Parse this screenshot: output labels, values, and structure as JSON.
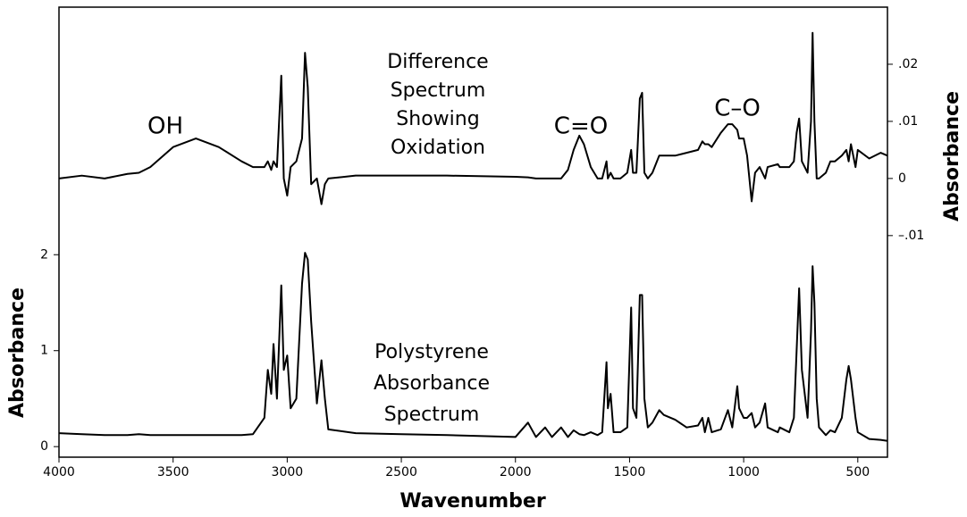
{
  "chart_data": {
    "type": "line",
    "xlabel": "Wavenumber",
    "ylabel": "Absorbance",
    "y2label": "Absorbance",
    "annotations": [
      "OH",
      "C=O",
      "C–O"
    ],
    "text_blocks": [
      [
        "Difference",
        "Spectrum",
        "Showing",
        "Oxidation"
      ],
      [
        "Polystyrene",
        "Absorbance",
        "Spectrum"
      ]
    ],
    "xlim": [
      4000,
      370
    ],
    "xticks": [
      4000,
      3500,
      3000,
      2500,
      2000,
      1500,
      1000,
      500
    ],
    "ylim": [
      -0.11,
      4.58
    ],
    "yticks": [
      0,
      1,
      2
    ],
    "y2lim": [
      -0.0488,
      0.03
    ],
    "y2ticks": [
      {
        "value": -0.01,
        "label": "–.01"
      },
      0,
      {
        "value": 0.01,
        "label": ".01"
      },
      {
        "value": 0.02,
        "label": ".02"
      }
    ],
    "grid": false,
    "x": [
      4000,
      3900,
      3800,
      3700,
      3650,
      3600,
      3500,
      3400,
      3300,
      3200,
      3150,
      3100,
      3085,
      3070,
      3060,
      3045,
      3026,
      3015,
      3000,
      2985,
      2960,
      2935,
      2922,
      2910,
      2895,
      2870,
      2850,
      2835,
      2820,
      2700,
      2500,
      2300,
      2000,
      1945,
      1910,
      1870,
      1840,
      1800,
      1770,
      1745,
      1720,
      1700,
      1670,
      1640,
      1620,
      1601,
      1595,
      1583,
      1570,
      1540,
      1510,
      1493,
      1485,
      1470,
      1455,
      1445,
      1435,
      1420,
      1400,
      1370,
      1350,
      1300,
      1250,
      1200,
      1181,
      1170,
      1155,
      1140,
      1100,
      1069,
      1050,
      1028,
      1020,
      1000,
      985,
      965,
      950,
      930,
      906,
      895,
      850,
      842,
      800,
      780,
      768,
      757,
      745,
      720,
      705,
      698,
      690,
      680,
      670,
      640,
      620,
      600,
      570,
      550,
      540,
      530,
      510,
      500,
      450,
      400,
      370
    ],
    "series": [
      {
        "color": "#000000",
        "axis": "y2",
        "values": [
          0.0,
          0.0005,
          0.0,
          0.0008,
          0.001,
          0.002,
          0.0055,
          0.007,
          0.0055,
          0.003,
          0.002,
          0.002,
          0.003,
          0.0015,
          0.003,
          0.002,
          0.018,
          0.0,
          -0.003,
          0.002,
          0.003,
          0.007,
          0.022,
          0.016,
          -0.001,
          0.0,
          -0.0045,
          -0.001,
          0.0,
          0.0005,
          0.0005,
          0.0005,
          0.0003,
          0.0002,
          0.0,
          0.0,
          0.0,
          0.0,
          0.0015,
          0.005,
          0.0075,
          0.006,
          0.002,
          0.0,
          0.0,
          0.003,
          0.0,
          0.001,
          0.0,
          0.0,
          0.001,
          0.005,
          0.001,
          0.001,
          0.014,
          0.015,
          0.001,
          0.0,
          0.001,
          0.004,
          0.004,
          0.004,
          0.0045,
          0.005,
          0.0065,
          0.006,
          0.006,
          0.0055,
          0.008,
          0.0095,
          0.0095,
          0.0085,
          0.007,
          0.007,
          0.004,
          -0.004,
          0.001,
          0.002,
          0.0,
          0.002,
          0.0025,
          0.002,
          0.002,
          0.003,
          0.008,
          0.0105,
          0.003,
          0.001,
          0.01,
          0.0255,
          0.01,
          0.0,
          0.0,
          0.001,
          0.003,
          0.003,
          0.004,
          0.005,
          0.003,
          0.006,
          0.002,
          0.005,
          0.0035,
          0.0045,
          0.004
        ]
      },
      {
        "color": "#000000",
        "values": [
          0.14,
          0.13,
          0.12,
          0.12,
          0.13,
          0.12,
          0.12,
          0.12,
          0.12,
          0.12,
          0.13,
          0.3,
          0.8,
          0.55,
          1.07,
          0.5,
          1.68,
          0.8,
          0.95,
          0.4,
          0.5,
          1.7,
          2.02,
          1.95,
          1.3,
          0.45,
          0.9,
          0.5,
          0.18,
          0.14,
          0.13,
          0.12,
          0.1,
          0.25,
          0.1,
          0.2,
          0.1,
          0.2,
          0.1,
          0.17,
          0.13,
          0.12,
          0.15,
          0.12,
          0.15,
          0.88,
          0.4,
          0.55,
          0.15,
          0.15,
          0.2,
          1.45,
          0.4,
          0.3,
          1.58,
          1.58,
          0.5,
          0.2,
          0.25,
          0.38,
          0.33,
          0.28,
          0.2,
          0.22,
          0.3,
          0.15,
          0.3,
          0.15,
          0.18,
          0.38,
          0.2,
          0.63,
          0.4,
          0.3,
          0.3,
          0.35,
          0.2,
          0.25,
          0.45,
          0.2,
          0.15,
          0.2,
          0.15,
          0.3,
          1.0,
          1.65,
          0.8,
          0.3,
          1.2,
          1.88,
          1.5,
          0.5,
          0.2,
          0.12,
          0.17,
          0.15,
          0.3,
          0.7,
          0.84,
          0.7,
          0.3,
          0.15,
          0.08,
          0.07,
          0.06
        ]
      }
    ]
  }
}
